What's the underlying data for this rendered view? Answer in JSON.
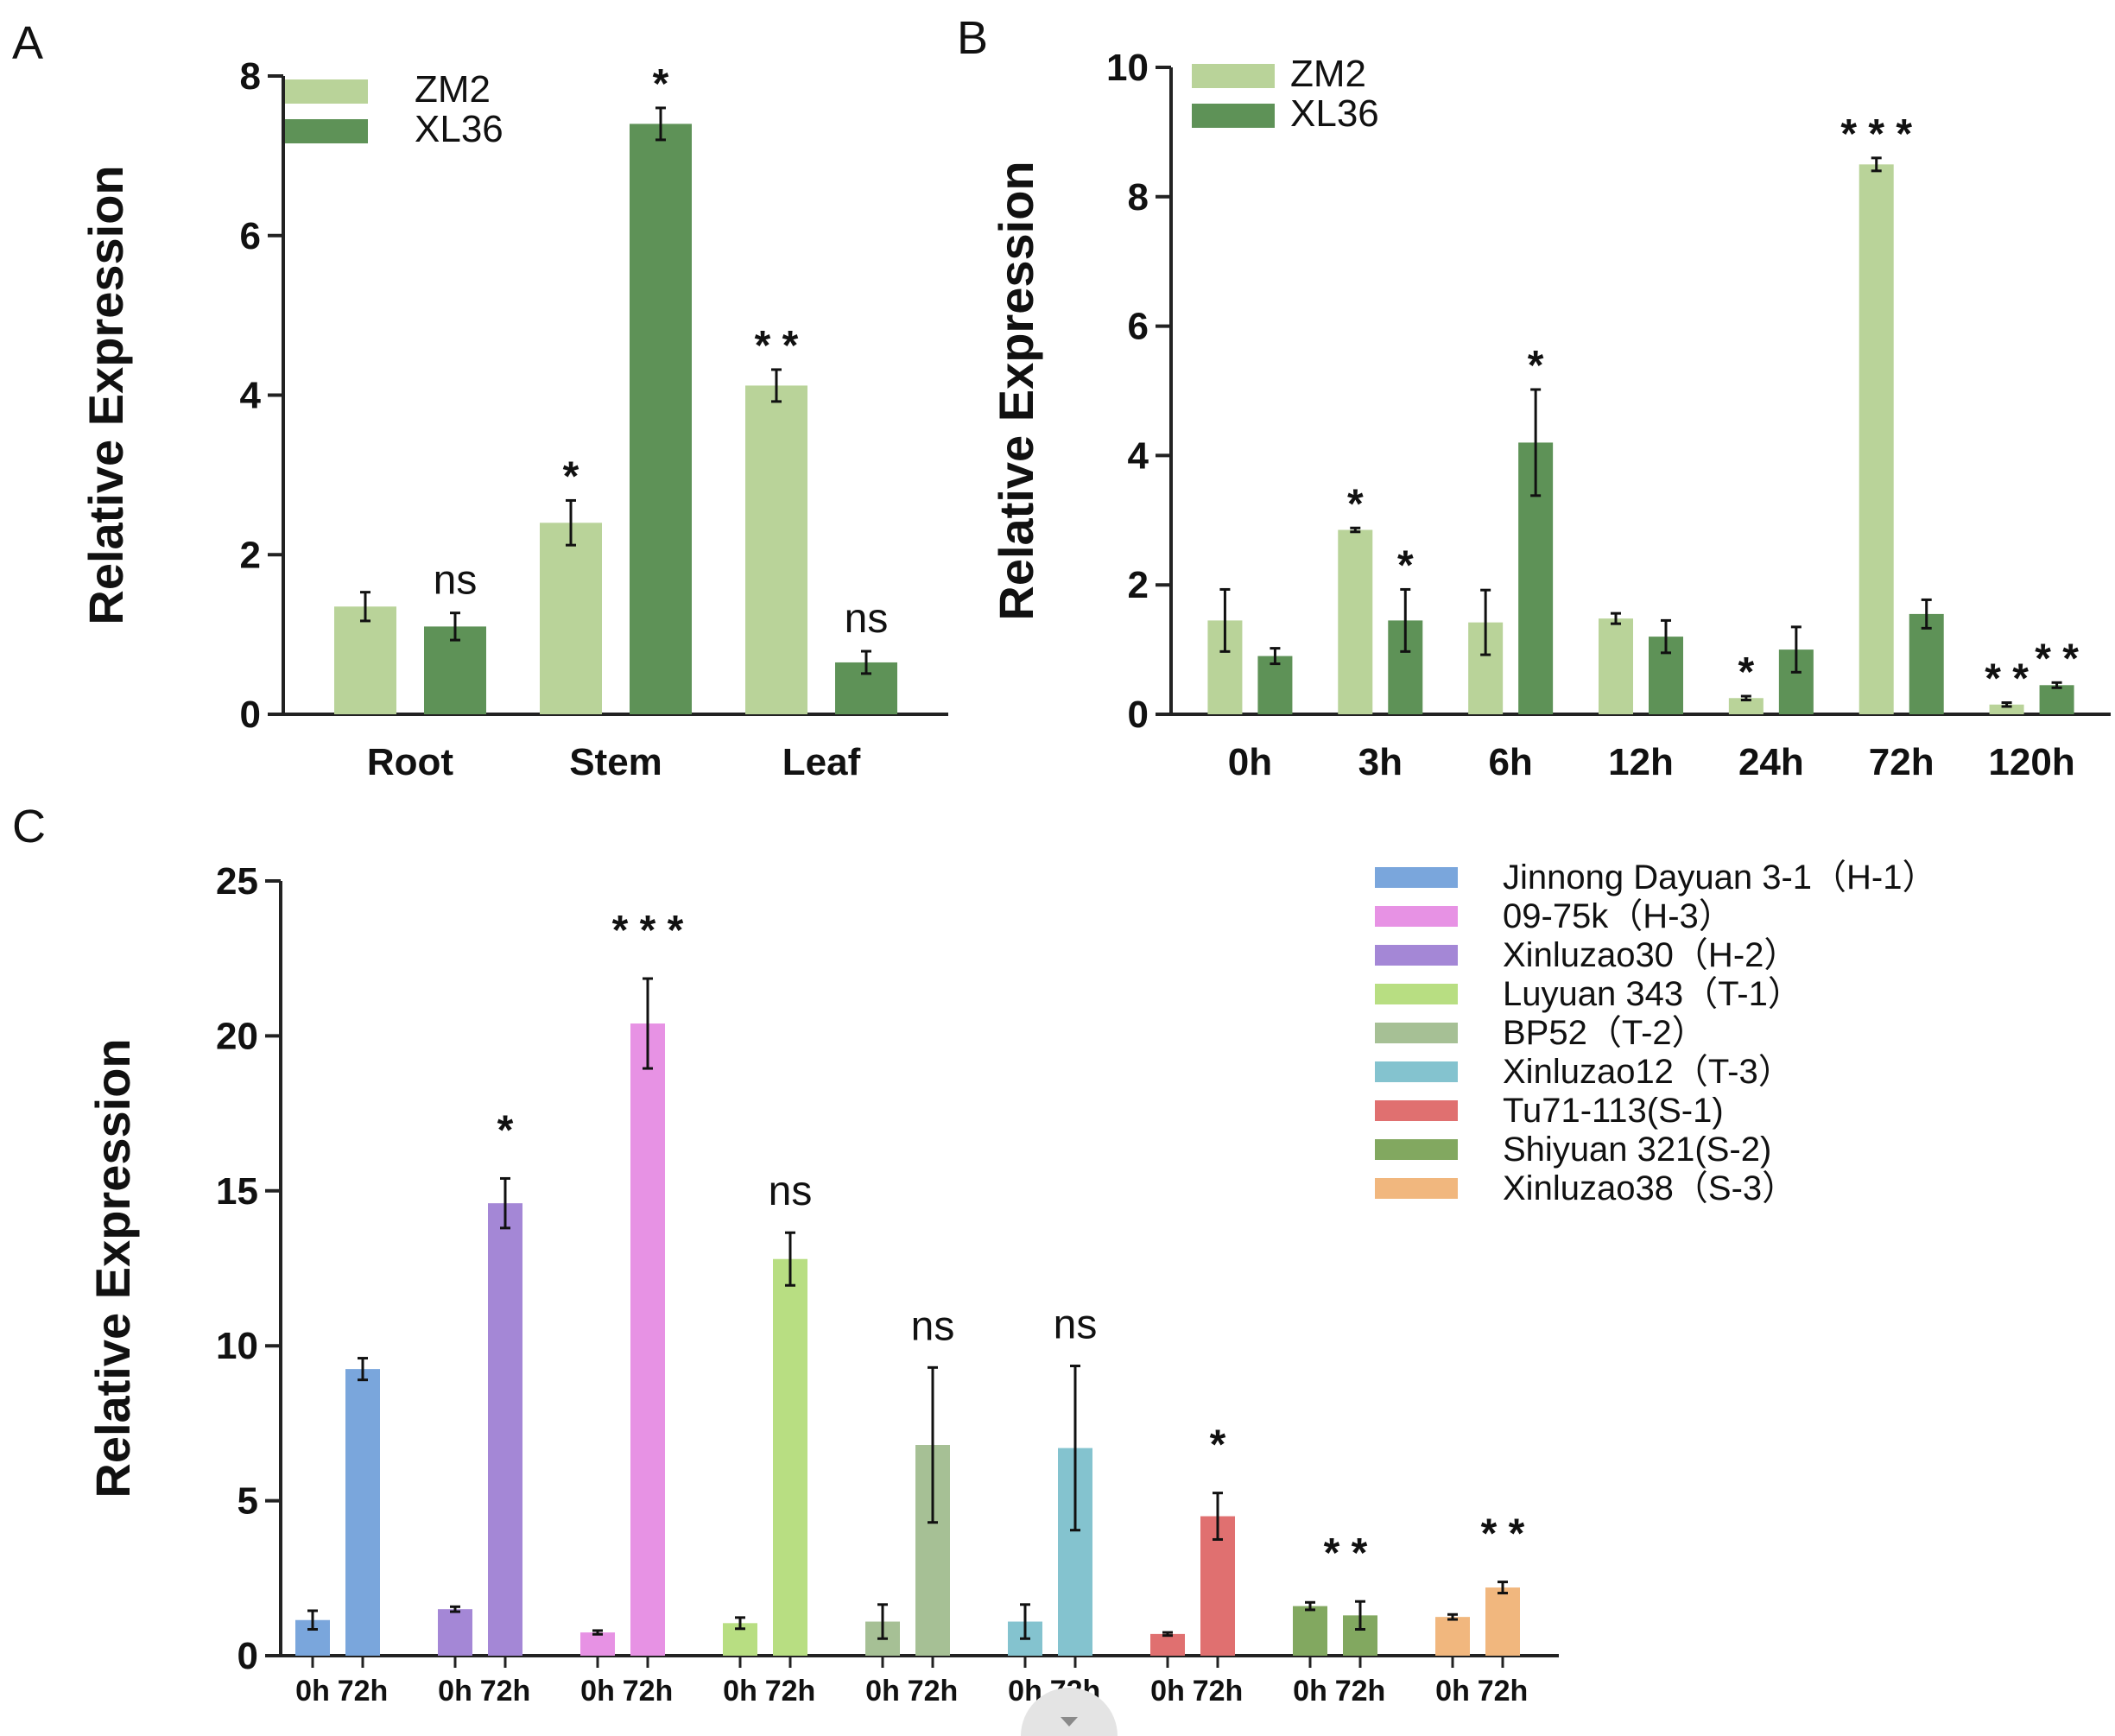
{
  "panels": {
    "A": {
      "letter": "A"
    },
    "B": {
      "letter": "B"
    },
    "C": {
      "letter": "C"
    }
  },
  "chart_data": [
    {
      "id": "A",
      "type": "bar",
      "title": "",
      "xlabel": "",
      "ylabel": "Relative Expression",
      "ylim": [
        0,
        8
      ],
      "yticks": [
        0,
        2,
        4,
        6,
        8
      ],
      "categories": [
        "Root",
        "Stem",
        "Leaf"
      ],
      "series": [
        {
          "name": "ZM2",
          "color": "#b9d399",
          "values": [
            1.35,
            2.4,
            4.12
          ],
          "errors": [
            0.18,
            0.28,
            0.2
          ]
        },
        {
          "name": "XL36",
          "color": "#5e9257",
          "values": [
            1.1,
            7.4,
            0.65
          ],
          "errors": [
            0.17,
            0.2,
            0.14
          ]
        }
      ],
      "significance": [
        {
          "category": 0,
          "series": 1,
          "label": "ns"
        },
        {
          "category": 1,
          "series": 0,
          "label": "*"
        },
        {
          "category": 1,
          "series": 1,
          "label": "*"
        },
        {
          "category": 2,
          "series": 0,
          "label": "**"
        },
        {
          "category": 2,
          "series": 1,
          "label": "ns"
        }
      ],
      "legend_position": "top-left"
    },
    {
      "id": "B",
      "type": "bar",
      "title": "",
      "xlabel": "",
      "ylabel": "Relative Expression",
      "ylim": [
        0,
        10
      ],
      "yticks": [
        0,
        2,
        4,
        6,
        8,
        10
      ],
      "categories": [
        "0h",
        "3h",
        "6h",
        "12h",
        "24h",
        "72h",
        "120h"
      ],
      "series": [
        {
          "name": "ZM2",
          "color": "#b9d399",
          "values": [
            1.45,
            2.85,
            1.42,
            1.48,
            0.25,
            8.5,
            0.15
          ],
          "errors": [
            0.48,
            0.03,
            0.5,
            0.08,
            0.03,
            0.1,
            0.03
          ]
        },
        {
          "name": "XL36",
          "color": "#5e9257",
          "values": [
            0.9,
            1.45,
            4.2,
            1.2,
            1.0,
            1.55,
            0.45
          ],
          "errors": [
            0.12,
            0.48,
            0.82,
            0.25,
            0.35,
            0.22,
            0.04
          ]
        }
      ],
      "significance": [
        {
          "category": 1,
          "series": 0,
          "label": "*"
        },
        {
          "category": 1,
          "series": 1,
          "label": "*"
        },
        {
          "category": 2,
          "series": 1,
          "label": "*"
        },
        {
          "category": 4,
          "series": 0,
          "label": "*"
        },
        {
          "category": 5,
          "series": 0,
          "label": "***"
        },
        {
          "category": 6,
          "series": 0,
          "label": "**"
        },
        {
          "category": 6,
          "series": 1,
          "label": "**"
        }
      ],
      "legend_position": "top-left"
    },
    {
      "id": "C",
      "type": "bar",
      "title": "",
      "xlabel": "",
      "ylabel": "Relative Expression",
      "ylim": [
        0,
        25
      ],
      "yticks": [
        0,
        5,
        10,
        15,
        20,
        25
      ],
      "categories": [
        "0h",
        "72h"
      ],
      "groups": [
        {
          "name": "Jinnong Dayuan 3-1（H-1）",
          "color": "#7aa6dc",
          "values": [
            1.15,
            9.25
          ],
          "errors": [
            0.3,
            0.35
          ],
          "significance": ""
        },
        {
          "name": "Xinluzao30（H-2）",
          "color": "#a487d6",
          "values": [
            1.5,
            14.6
          ],
          "errors": [
            0.08,
            0.8
          ],
          "significance": "*"
        },
        {
          "name": "09-75k（H-3）",
          "color": "#e792e4",
          "values": [
            0.75,
            20.4
          ],
          "errors": [
            0.06,
            1.45
          ],
          "significance": "***"
        },
        {
          "name": "Luyuan 343（T-1）",
          "color": "#b8de82",
          "values": [
            1.05,
            12.8
          ],
          "errors": [
            0.18,
            0.85
          ],
          "significance": "ns"
        },
        {
          "name": "BP52（T-2）",
          "color": "#a6c095",
          "values": [
            1.1,
            6.8
          ],
          "errors": [
            0.55,
            2.5
          ],
          "significance": "ns"
        },
        {
          "name": "Xinluzao12（T-3）",
          "color": "#84c3cf",
          "values": [
            1.1,
            6.7
          ],
          "errors": [
            0.55,
            2.65
          ],
          "significance": "ns"
        },
        {
          "name": "Tu71-113(S-1)",
          "color": "#e07070",
          "values": [
            0.7,
            4.5
          ],
          "errors": [
            0.05,
            0.75
          ],
          "significance": "*"
        },
        {
          "name": "Shiyuan 321(S-2)",
          "color": "#82a860",
          "values": [
            1.6,
            1.3
          ],
          "errors": [
            0.12,
            0.45
          ],
          "significance": "**"
        },
        {
          "name": "Xinluzao38（S-3）",
          "color": "#f1b77e",
          "values": [
            1.25,
            2.2
          ],
          "errors": [
            0.08,
            0.18
          ],
          "significance": "**"
        }
      ],
      "legend": [
        "Jinnong Dayuan 3-1（H-1）",
        "09-75k（H-3）",
        "Xinluzao30（H-2）",
        "Luyuan 343（T-1）",
        "BP52（T-2）",
        "Xinluzao12（T-3）",
        "Tu71-113(S-1)",
        "Shiyuan 321(S-2)",
        "Xinluzao38（S-3）"
      ],
      "legend_position": "top-right"
    }
  ]
}
